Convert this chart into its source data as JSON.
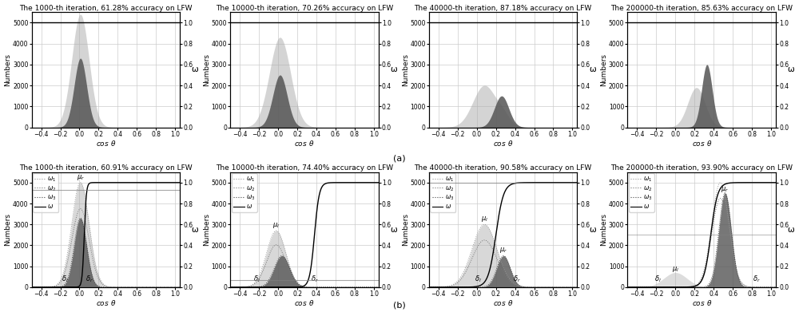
{
  "row_a_titles": [
    "The 1000-th iteration, 61.28% accuracy on LFW",
    "The 10000-th iteration, 70.26% accuracy on LFW",
    "The 40000-th iteration, 87.18% accuracy on LFW",
    "The 200000-th iteration, 85.63% accuracy on LFW"
  ],
  "row_b_titles": [
    "The 1000-th iteration, 60.91% accuracy on LFW",
    "The 10000-th iteration, 74.40% accuracy on LFW",
    "The 40000-th iteration, 90.58% accuracy on LFW",
    "The 200000-th iteration, 93.90% accuracy on LFW"
  ],
  "ylabel_left": "Numbers",
  "ylabel_right": "ω",
  "ylim_left": [
    0,
    5500
  ],
  "ylim_right": [
    0.0,
    1.1
  ],
  "xlim": [
    -0.5,
    1.05
  ],
  "yticks_left": [
    0,
    1000,
    2000,
    3000,
    4000,
    5000
  ],
  "yticks_right": [
    0.0,
    0.2,
    0.4,
    0.6,
    0.8,
    1.0
  ],
  "xticks": [
    -0.4,
    -0.2,
    0.0,
    0.2,
    0.4,
    0.6,
    0.8,
    1.0
  ],
  "color_light": "#aaaaaa",
  "color_dark": "#555555",
  "color_dotted_light": "#999999",
  "color_dotted_medium": "#777777",
  "color_dotted_dark": "#444444",
  "background_color": "#ffffff",
  "grid_color": "#cccccc",
  "label_fontsize": 6.5,
  "title_fontsize": 6.5,
  "tick_fontsize": 5.5,
  "legend_fontsize": 5.5,
  "annotation_fontsize": 6.0
}
